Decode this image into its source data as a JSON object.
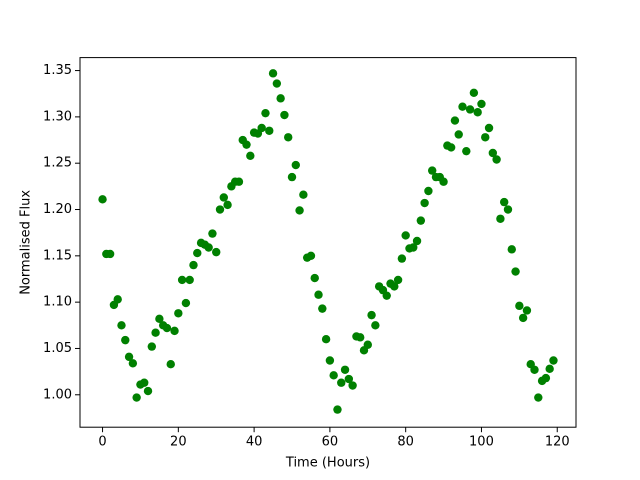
{
  "chart_data": {
    "type": "scatter",
    "x_label": "Time (Hours)",
    "y_label": "Normalised Flux",
    "x": [
      0,
      1,
      2,
      3,
      4,
      5,
      6,
      7,
      8,
      9,
      10,
      11,
      12,
      13,
      14,
      15,
      16,
      17,
      18,
      19,
      20,
      21,
      22,
      23,
      24,
      25,
      26,
      27,
      28,
      29,
      30,
      31,
      32,
      33,
      34,
      35,
      36,
      37,
      38,
      39,
      40,
      41,
      42,
      43,
      44,
      45,
      46,
      47,
      48,
      49,
      50,
      51,
      52,
      53,
      54,
      55,
      56,
      57,
      58,
      59,
      60,
      61,
      62,
      63,
      64,
      65,
      66,
      67,
      68,
      69,
      70,
      71,
      72,
      73,
      74,
      75,
      76,
      77,
      78,
      79,
      80,
      81,
      82,
      83,
      84,
      85,
      86,
      87,
      88,
      89,
      90,
      91,
      92,
      93,
      94,
      95,
      96,
      97,
      98,
      99,
      100,
      101,
      102,
      103,
      104,
      105,
      106,
      107,
      108,
      109,
      110,
      111,
      112,
      113,
      114,
      115,
      116,
      117,
      118,
      119
    ],
    "values": [
      1.211,
      1.152,
      1.152,
      1.097,
      1.103,
      1.075,
      1.059,
      1.041,
      1.034,
      0.997,
      1.011,
      1.013,
      1.004,
      1.052,
      1.067,
      1.082,
      1.075,
      1.072,
      1.033,
      1.069,
      1.088,
      1.124,
      1.099,
      1.124,
      1.14,
      1.153,
      1.164,
      1.162,
      1.159,
      1.174,
      1.154,
      1.2,
      1.213,
      1.205,
      1.225,
      1.23,
      1.23,
      1.275,
      1.27,
      1.258,
      1.283,
      1.282,
      1.288,
      1.304,
      1.285,
      1.347,
      1.336,
      1.32,
      1.302,
      1.278,
      1.235,
      1.248,
      1.199,
      1.216,
      1.148,
      1.15,
      1.126,
      1.108,
      1.093,
      1.06,
      1.037,
      1.021,
      0.984,
      1.013,
      1.027,
      1.017,
      1.01,
      1.063,
      1.062,
      1.048,
      1.054,
      1.086,
      1.075,
      1.117,
      1.113,
      1.107,
      1.12,
      1.117,
      1.124,
      1.147,
      1.172,
      1.158,
      1.159,
      1.166,
      1.188,
      1.207,
      1.22,
      1.242,
      1.235,
      1.235,
      1.23,
      1.269,
      1.267,
      1.296,
      1.281,
      1.311,
      1.263,
      1.308,
      1.326,
      1.305,
      1.314,
      1.278,
      1.288,
      1.261,
      1.254,
      1.19,
      1.208,
      1.2,
      1.157,
      1.133,
      1.096,
      1.083,
      1.091,
      1.033,
      1.027,
      0.997,
      1.015,
      1.018,
      1.028,
      1.037
    ],
    "color": "#008000",
    "xlim": [
      -5.95,
      124.95
    ],
    "xticks": [
      0,
      20,
      40,
      60,
      80,
      100,
      120
    ],
    "ylim": [
      0.965,
      1.364
    ],
    "yticks": [
      {
        "value": 1.0,
        "label": "1.00"
      },
      {
        "value": 1.05,
        "label": "1.05"
      },
      {
        "value": 1.1,
        "label": "1.10"
      },
      {
        "value": 1.15,
        "label": "1.15"
      },
      {
        "value": 1.2,
        "label": "1.20"
      },
      {
        "value": 1.25,
        "label": "1.25"
      },
      {
        "value": 1.3,
        "label": "1.30"
      },
      {
        "value": 1.35,
        "label": "1.35"
      }
    ],
    "grid": false
  }
}
